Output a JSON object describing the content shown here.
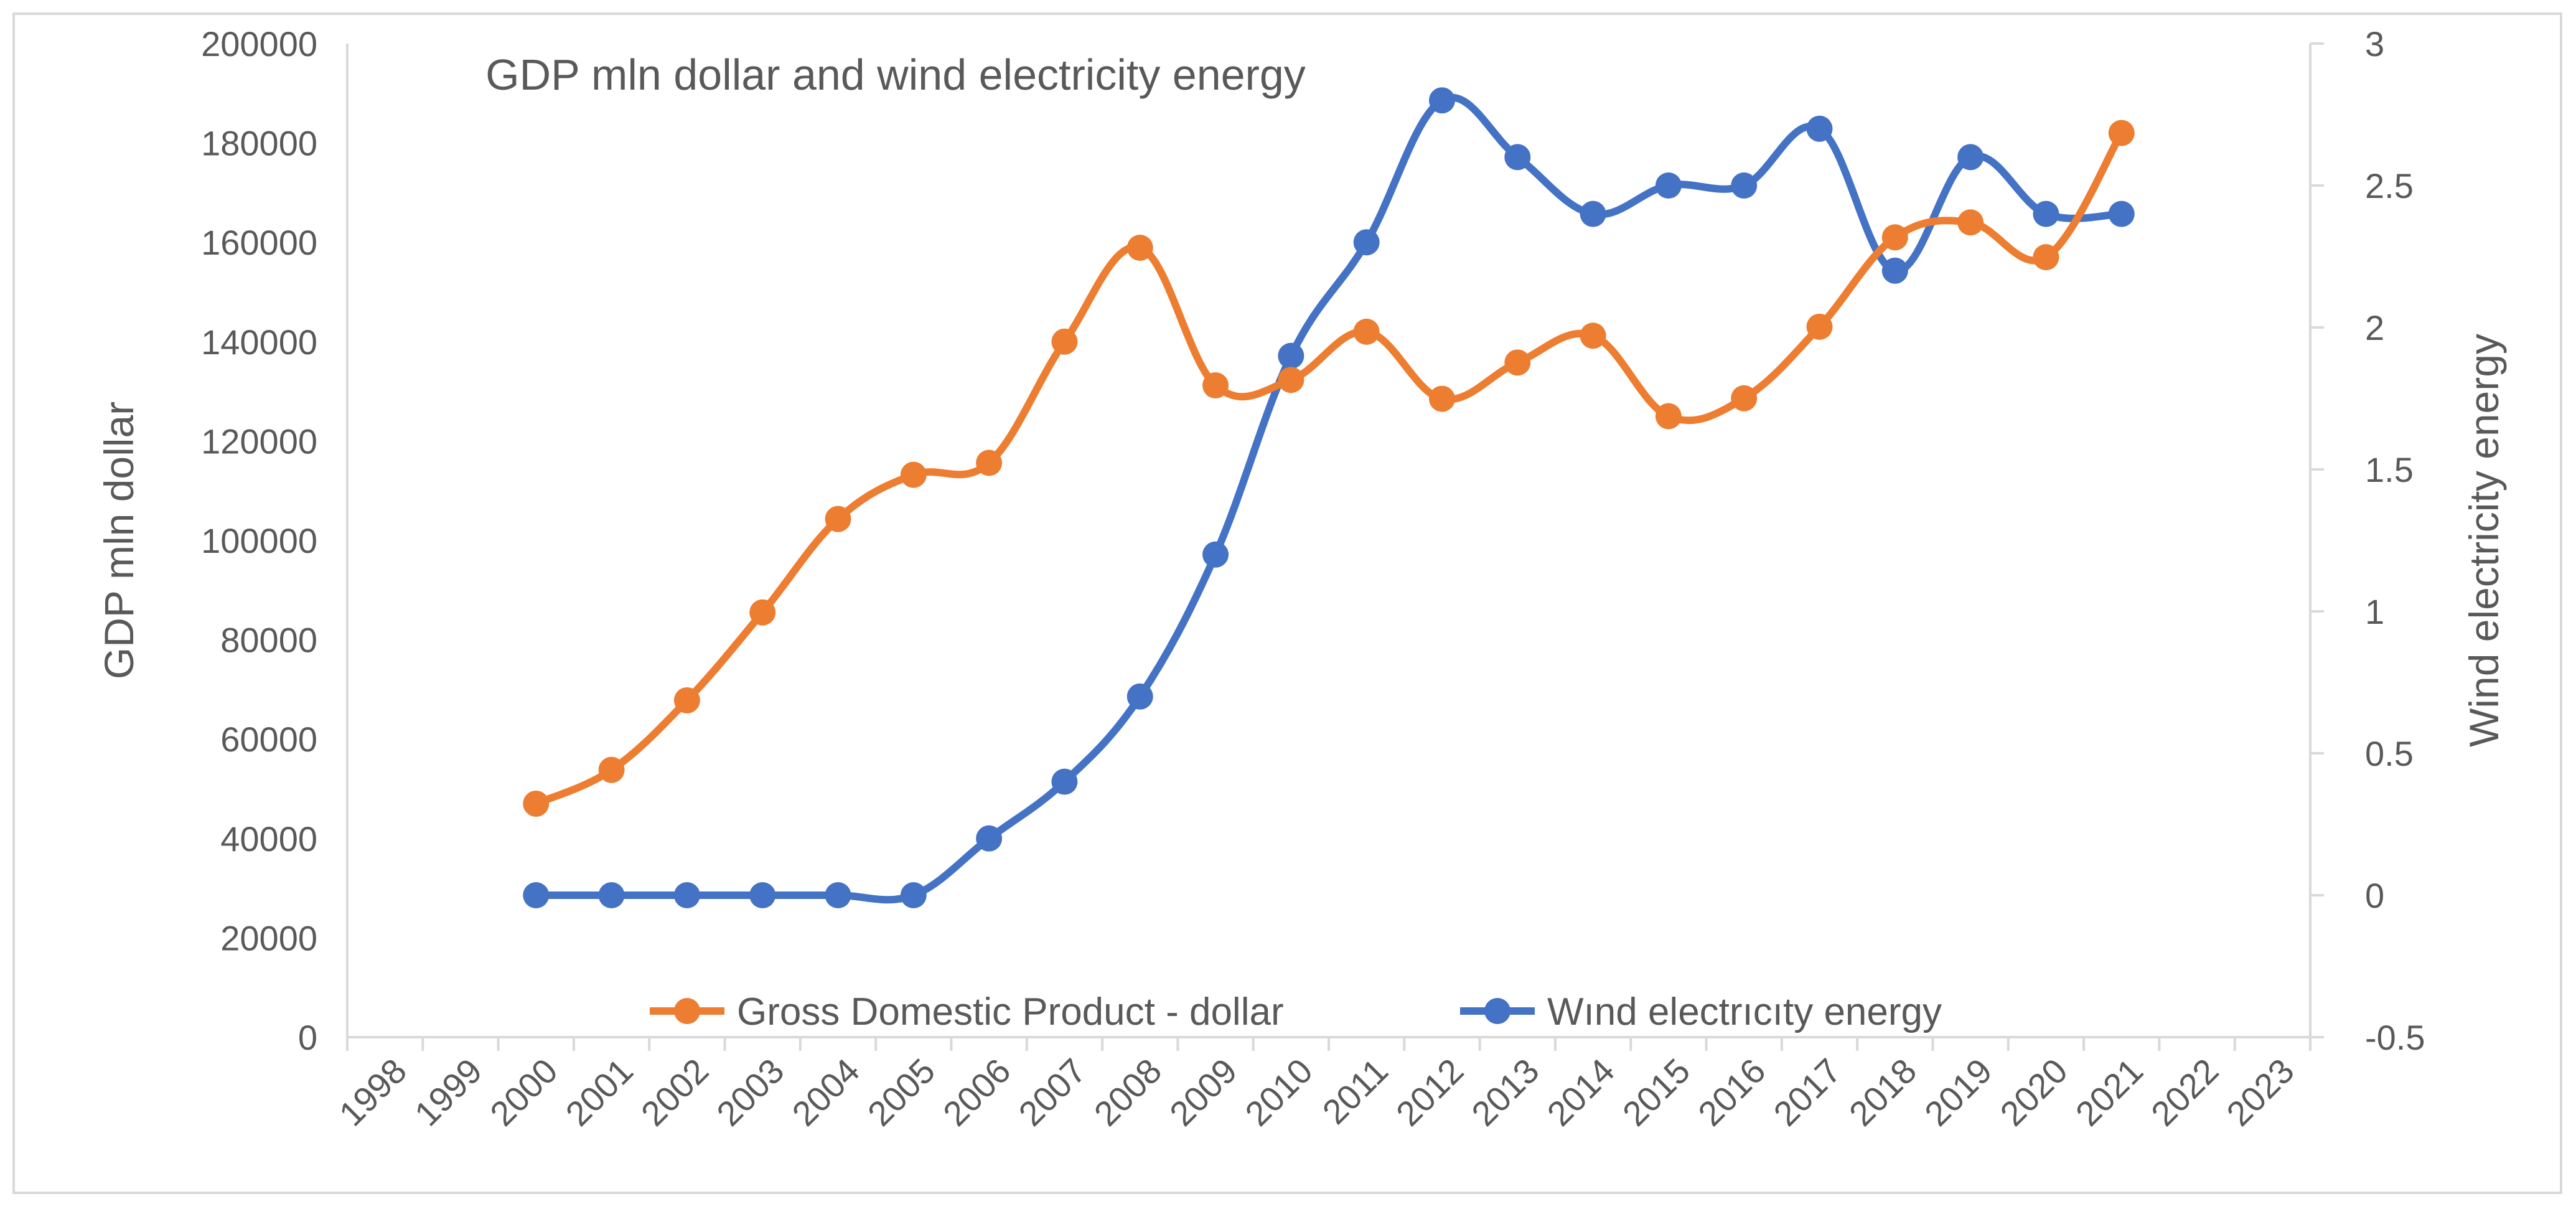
{
  "chart_data": {
    "type": "line",
    "title": "GDP mln dollar and wind electricity energy",
    "x_ticks": [
      "1998",
      "1999",
      "2000",
      "2001",
      "2002",
      "2003",
      "2004",
      "2005",
      "2006",
      "2007",
      "2008",
      "2009",
      "2010",
      "2011",
      "2012",
      "2013",
      "2014",
      "2015",
      "2016",
      "2017",
      "2018",
      "2019",
      "2020",
      "2021",
      "2022",
      "2023"
    ],
    "xlim": [
      1998,
      2023
    ],
    "y_left": {
      "label": "GDP mln dollar",
      "ylim": [
        0,
        200000
      ],
      "ticks": [
        "0",
        "20000",
        "40000",
        "60000",
        "80000",
        "100000",
        "120000",
        "140000",
        "160000",
        "180000",
        "200000"
      ]
    },
    "y_right": {
      "label": "Wind electricity energy",
      "ylim": [
        -0.5,
        3
      ],
      "ticks": [
        "-0.5",
        "0",
        "0.5",
        "1",
        "1.5",
        "2",
        "2.5",
        "3"
      ]
    },
    "grid": false,
    "legend_position": "bottom-inside",
    "smooth": true,
    "x": [
      2000,
      2001,
      2002,
      2003,
      2004,
      2005,
      2006,
      2007,
      2008,
      2009,
      2010,
      2011,
      2012,
      2013,
      2014,
      2015,
      2016,
      2017,
      2018,
      2019,
      2020,
      2021
    ],
    "series": [
      {
        "name": "Gross Domestic Product - dollar",
        "axis": "left",
        "color": "#ED7D31",
        "values": [
          47000,
          53800,
          67800,
          85500,
          104300,
          113200,
          115600,
          140000,
          158900,
          131200,
          132300,
          142000,
          128500,
          135800,
          141200,
          125000,
          128600,
          143000,
          161000,
          164000,
          157000,
          182000
        ]
      },
      {
        "name": "Wınd electrıcıty energy",
        "axis": "right",
        "color": "#4472C4",
        "values": [
          0,
          0,
          0,
          0,
          0,
          0,
          0.2,
          0.4,
          0.7,
          1.2,
          1.9,
          2.3,
          2.8,
          2.6,
          2.4,
          2.5,
          2.5,
          2.7,
          2.2,
          2.6,
          2.4,
          2.4
        ]
      }
    ]
  }
}
